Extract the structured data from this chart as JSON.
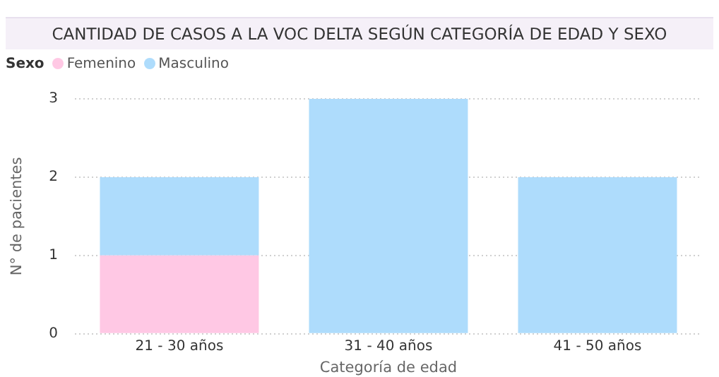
{
  "chart_data": {
    "type": "bar",
    "title": "CANTIDAD DE CASOS A LA VOC DELTA SEGÚN CATEGORÍA DE EDAD Y SEXO",
    "xlabel": "Categoría de edad",
    "ylabel": "N° de pacientes",
    "legend_title": "Sexo",
    "legend": "top left",
    "stacked": true,
    "grid": "y",
    "categories": [
      "21 - 30 años",
      "31 - 40 años",
      "41 - 50 años"
    ],
    "series": [
      {
        "name": "Femenino",
        "color": "#ffc8e4",
        "values": [
          1,
          0,
          0
        ]
      },
      {
        "name": "Masculino",
        "color": "#aedcfc",
        "values": [
          1,
          3,
          2
        ]
      }
    ],
    "ylim": [
      0,
      3
    ],
    "yticks": [
      0,
      1,
      2,
      3
    ]
  }
}
